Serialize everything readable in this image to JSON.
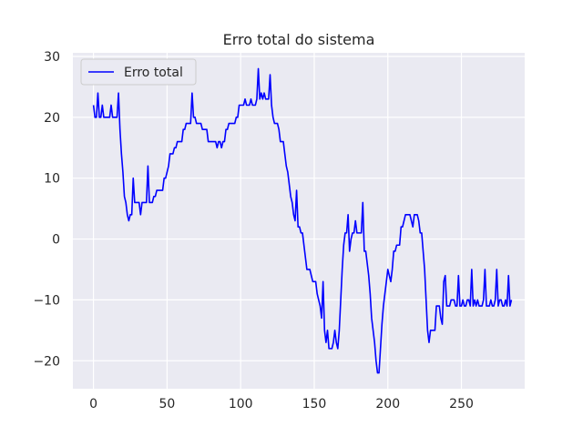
{
  "chart_data": {
    "type": "line",
    "title": "Erro total do sistema",
    "xlabel": "",
    "ylabel": "",
    "xlim": [
      -14,
      293
    ],
    "ylim": [
      -24.6,
      30.6
    ],
    "x_ticks": [
      0,
      50,
      100,
      150,
      200,
      250
    ],
    "y_ticks": [
      -20,
      -10,
      0,
      10,
      20,
      30
    ],
    "grid": true,
    "legend": {
      "position": "top-left"
    },
    "series": [
      {
        "name": "Erro total",
        "color": "#0000ff",
        "points": [
          [
            0,
            22
          ],
          [
            1,
            20
          ],
          [
            2,
            20
          ],
          [
            3,
            24
          ],
          [
            4,
            20
          ],
          [
            5,
            20
          ],
          [
            6,
            22
          ],
          [
            7,
            20
          ],
          [
            8,
            20
          ],
          [
            9,
            20
          ],
          [
            10,
            20
          ],
          [
            11,
            20
          ],
          [
            12,
            22
          ],
          [
            13,
            20
          ],
          [
            14,
            20
          ],
          [
            15,
            20
          ],
          [
            16,
            20
          ],
          [
            17,
            24
          ],
          [
            18,
            18
          ],
          [
            19,
            14
          ],
          [
            20,
            11
          ],
          [
            21,
            7
          ],
          [
            22,
            6
          ],
          [
            23,
            4
          ],
          [
            24,
            3
          ],
          [
            25,
            4
          ],
          [
            26,
            4
          ],
          [
            27,
            10
          ],
          [
            28,
            6
          ],
          [
            29,
            6
          ],
          [
            30,
            6
          ],
          [
            31,
            6
          ],
          [
            32,
            4
          ],
          [
            33,
            6
          ],
          [
            34,
            6
          ],
          [
            35,
            6
          ],
          [
            36,
            6
          ],
          [
            37,
            12
          ],
          [
            38,
            6
          ],
          [
            39,
            6
          ],
          [
            40,
            6
          ],
          [
            41,
            7
          ],
          [
            42,
            7
          ],
          [
            43,
            8
          ],
          [
            44,
            8
          ],
          [
            45,
            8
          ],
          [
            46,
            8
          ],
          [
            47,
            8
          ],
          [
            48,
            10
          ],
          [
            49,
            10
          ],
          [
            50,
            11
          ],
          [
            51,
            12
          ],
          [
            52,
            14
          ],
          [
            53,
            14
          ],
          [
            54,
            14
          ],
          [
            55,
            15
          ],
          [
            56,
            15
          ],
          [
            57,
            16
          ],
          [
            58,
            16
          ],
          [
            59,
            16
          ],
          [
            60,
            16
          ],
          [
            61,
            18
          ],
          [
            62,
            18
          ],
          [
            63,
            19
          ],
          [
            64,
            19
          ],
          [
            65,
            19
          ],
          [
            66,
            19
          ],
          [
            67,
            24
          ],
          [
            68,
            20
          ],
          [
            69,
            20
          ],
          [
            70,
            19
          ],
          [
            71,
            19
          ],
          [
            72,
            19
          ],
          [
            73,
            19
          ],
          [
            74,
            18
          ],
          [
            75,
            18
          ],
          [
            76,
            18
          ],
          [
            77,
            18
          ],
          [
            78,
            16
          ],
          [
            79,
            16
          ],
          [
            80,
            16
          ],
          [
            81,
            16
          ],
          [
            82,
            16
          ],
          [
            83,
            16
          ],
          [
            84,
            15
          ],
          [
            85,
            16
          ],
          [
            86,
            16
          ],
          [
            87,
            15
          ],
          [
            88,
            16
          ],
          [
            89,
            16
          ],
          [
            90,
            18
          ],
          [
            91,
            18
          ],
          [
            92,
            19
          ],
          [
            93,
            19
          ],
          [
            94,
            19
          ],
          [
            95,
            19
          ],
          [
            96,
            19
          ],
          [
            97,
            20
          ],
          [
            98,
            20
          ],
          [
            99,
            22
          ],
          [
            100,
            22
          ],
          [
            101,
            22
          ],
          [
            102,
            22
          ],
          [
            103,
            23
          ],
          [
            104,
            22
          ],
          [
            105,
            22
          ],
          [
            106,
            22
          ],
          [
            107,
            23
          ],
          [
            108,
            22
          ],
          [
            109,
            22
          ],
          [
            110,
            22
          ],
          [
            111,
            23
          ],
          [
            112,
            28
          ],
          [
            113,
            23
          ],
          [
            114,
            24
          ],
          [
            115,
            23
          ],
          [
            116,
            24
          ],
          [
            117,
            23
          ],
          [
            118,
            23
          ],
          [
            119,
            23
          ],
          [
            120,
            27
          ],
          [
            121,
            22
          ],
          [
            122,
            20
          ],
          [
            123,
            19
          ],
          [
            124,
            19
          ],
          [
            125,
            19
          ],
          [
            126,
            18
          ],
          [
            127,
            16
          ],
          [
            128,
            16
          ],
          [
            129,
            16
          ],
          [
            130,
            14
          ],
          [
            131,
            12
          ],
          [
            132,
            11
          ],
          [
            133,
            9
          ],
          [
            134,
            7
          ],
          [
            135,
            6
          ],
          [
            136,
            4
          ],
          [
            137,
            3
          ],
          [
            138,
            8
          ],
          [
            139,
            2
          ],
          [
            140,
            2
          ],
          [
            141,
            1
          ],
          [
            142,
            1
          ],
          [
            143,
            -1
          ],
          [
            144,
            -3
          ],
          [
            145,
            -5
          ],
          [
            146,
            -5
          ],
          [
            147,
            -5
          ],
          [
            148,
            -6
          ],
          [
            149,
            -7
          ],
          [
            150,
            -7
          ],
          [
            151,
            -7
          ],
          [
            152,
            -9
          ],
          [
            153,
            -10
          ],
          [
            154,
            -11
          ],
          [
            155,
            -13
          ],
          [
            156,
            -7
          ],
          [
            157,
            -15
          ],
          [
            158,
            -17
          ],
          [
            159,
            -15
          ],
          [
            160,
            -18
          ],
          [
            161,
            -18
          ],
          [
            162,
            -18
          ],
          [
            163,
            -17
          ],
          [
            164,
            -15
          ],
          [
            165,
            -17
          ],
          [
            166,
            -18
          ],
          [
            167,
            -15
          ],
          [
            168,
            -10
          ],
          [
            169,
            -5
          ],
          [
            170,
            -1
          ],
          [
            171,
            1
          ],
          [
            172,
            1
          ],
          [
            173,
            4
          ],
          [
            174,
            -2
          ],
          [
            175,
            0
          ],
          [
            176,
            1
          ],
          [
            177,
            1
          ],
          [
            178,
            3
          ],
          [
            179,
            1
          ],
          [
            180,
            1
          ],
          [
            181,
            1
          ],
          [
            182,
            1
          ],
          [
            183,
            6
          ],
          [
            184,
            -2
          ],
          [
            185,
            -2
          ],
          [
            186,
            -4
          ],
          [
            187,
            -6
          ],
          [
            188,
            -9
          ],
          [
            189,
            -13
          ],
          [
            190,
            -15
          ],
          [
            191,
            -17
          ],
          [
            192,
            -20
          ],
          [
            193,
            -22
          ],
          [
            194,
            -22
          ],
          [
            195,
            -18
          ],
          [
            196,
            -14
          ],
          [
            197,
            -11
          ],
          [
            198,
            -9
          ],
          [
            199,
            -7
          ],
          [
            200,
            -5
          ],
          [
            201,
            -6
          ],
          [
            202,
            -7
          ],
          [
            203,
            -5
          ],
          [
            204,
            -2
          ],
          [
            205,
            -2
          ],
          [
            206,
            -1
          ],
          [
            207,
            -1
          ],
          [
            208,
            -1
          ],
          [
            209,
            2
          ],
          [
            210,
            2
          ],
          [
            211,
            3
          ],
          [
            212,
            4
          ],
          [
            213,
            4
          ],
          [
            214,
            4
          ],
          [
            215,
            4
          ],
          [
            216,
            3
          ],
          [
            217,
            2
          ],
          [
            218,
            4
          ],
          [
            219,
            4
          ],
          [
            220,
            4
          ],
          [
            221,
            3
          ],
          [
            222,
            1
          ],
          [
            223,
            1
          ],
          [
            224,
            -2
          ],
          [
            225,
            -5
          ],
          [
            226,
            -10
          ],
          [
            227,
            -15
          ],
          [
            228,
            -17
          ],
          [
            229,
            -15
          ],
          [
            230,
            -15
          ],
          [
            231,
            -15
          ],
          [
            232,
            -15
          ],
          [
            233,
            -11
          ],
          [
            234,
            -11
          ],
          [
            235,
            -11
          ],
          [
            236,
            -13
          ],
          [
            237,
            -14
          ],
          [
            238,
            -7
          ],
          [
            239,
            -6
          ],
          [
            240,
            -11
          ],
          [
            241,
            -11
          ],
          [
            242,
            -11
          ],
          [
            243,
            -10
          ],
          [
            244,
            -10
          ],
          [
            245,
            -10
          ],
          [
            246,
            -11
          ],
          [
            247,
            -11
          ],
          [
            248,
            -6
          ],
          [
            249,
            -11
          ],
          [
            250,
            -11
          ],
          [
            251,
            -10
          ],
          [
            252,
            -11
          ],
          [
            253,
            -11
          ],
          [
            254,
            -10
          ],
          [
            255,
            -10
          ],
          [
            256,
            -11
          ],
          [
            257,
            -5
          ],
          [
            258,
            -11
          ],
          [
            259,
            -10
          ],
          [
            260,
            -11
          ],
          [
            261,
            -10
          ],
          [
            262,
            -11
          ],
          [
            263,
            -11
          ],
          [
            264,
            -11
          ],
          [
            265,
            -10
          ],
          [
            266,
            -5
          ],
          [
            267,
            -11
          ],
          [
            268,
            -11
          ],
          [
            269,
            -11
          ],
          [
            270,
            -10
          ],
          [
            271,
            -11
          ],
          [
            272,
            -11
          ],
          [
            273,
            -10
          ],
          [
            274,
            -5
          ],
          [
            275,
            -11
          ],
          [
            276,
            -10
          ],
          [
            277,
            -10
          ],
          [
            278,
            -11
          ],
          [
            279,
            -11
          ],
          [
            280,
            -10
          ],
          [
            281,
            -11
          ],
          [
            282,
            -6
          ],
          [
            283,
            -11
          ],
          [
            284,
            -10
          ]
        ]
      }
    ]
  }
}
